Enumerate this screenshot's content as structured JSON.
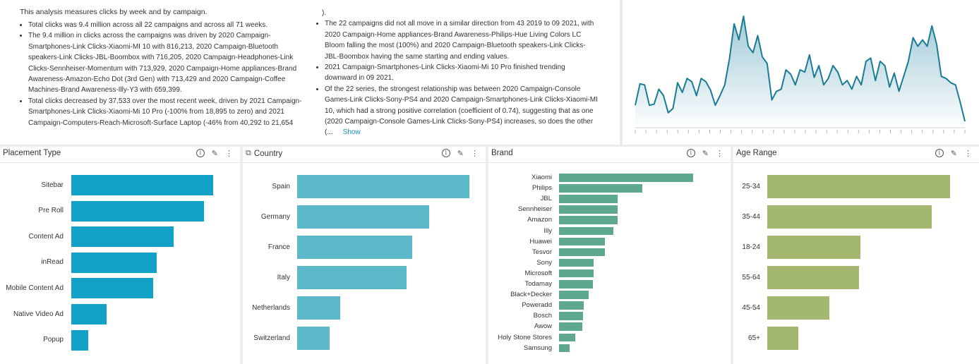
{
  "insights": {
    "intro": "This analysis measures clicks by week and by campaign.",
    "col1": [
      "Total clicks was 9.4 million across all 22 campaigns and across all 71 weeks.",
      "The 9.4 million in clicks across the campaigns was driven by 2020 Campaign-Smartphones-Link Clicks-Xiaomi-MI 10 with 816,213, 2020 Campaign-Bluetooth speakers-Link Clicks-JBL-Boombox with 716,205, 2020 Campaign-Headphones-Link Clicks-Sennheiser-Momentum with 713,929, 2020 Campaign-Home appliances-Brand Awareness-Amazon-Echo Dot (3rd Gen) with 713,429 and 2020 Campaign-Coffee Machines-Brand Awareness-Illy-Y3 with 659,399.",
      "Total clicks decreased by 37,533 over the most recent week, driven by 2021 Campaign-Smartphones-Link Clicks-Xiaomi-Mi 10 Pro (-100% from 18,895 to zero) and 2021 Campaign-Computers-Reach-Microsoft-Surface Laptop (-46% from 40,292 to 21,654"
    ],
    "col2_cont": ").",
    "col2": [
      "The 22 campaigns did not all move in a similar direction from 43 2019 to 09 2021, with 2020 Campaign-Home appliances-Brand Awareness-Philips-Hue Living Colors LC Bloom falling the most (100%) and 2020 Campaign-Bluetooth speakers-Link Clicks-JBL-Boombox having the same starting and ending values.",
      "2021 Campaign-Smartphones-Link Clicks-Xiaomi-Mi 10 Pro finished trending downward in 09 2021.",
      "Of the 22 series, the strongest relationship was between 2020 Campaign-Console Games-Link Clicks-Sony-PS4 and 2020 Campaign-Smartphones-Link Clicks-Xiaomi-MI 10, which had a strong positive correlation (coefficient of 0.74), suggesting that as one (2020 Campaign-Console Games-Link Clicks-Sony-PS4) increases, so does the other (..."
    ],
    "show_label": "Show"
  },
  "colors": {
    "placement": "#12a2c8",
    "country": "#5ab8c9",
    "brand": "#5ea88f",
    "age": "#a3b86e",
    "spark_line": "#1c7b94"
  },
  "panels": {
    "placement": {
      "title": "Placement Type"
    },
    "country": {
      "title": "Country"
    },
    "brand": {
      "title": "Brand"
    },
    "age": {
      "title": "Age Range"
    }
  },
  "chart_data": [
    {
      "type": "line",
      "values": [
        0.15,
        0.35,
        0.34,
        0.15,
        0.16,
        0.3,
        0.24,
        0.08,
        0.12,
        0.36,
        0.27,
        0.4,
        0.37,
        0.24,
        0.4,
        0.37,
        0.29,
        0.15,
        0.24,
        0.34,
        0.58,
        0.91,
        0.76,
        0.98,
        0.7,
        0.64,
        0.8,
        0.6,
        0.54,
        0.2,
        0.28,
        0.3,
        0.48,
        0.44,
        0.34,
        0.48,
        0.46,
        0.62,
        0.41,
        0.52,
        0.34,
        0.4,
        0.52,
        0.46,
        0.34,
        0.38,
        0.3,
        0.42,
        0.34,
        0.56,
        0.59,
        0.38,
        0.56,
        0.52,
        0.32,
        0.45,
        0.28,
        0.42,
        0.56,
        0.78,
        0.7,
        0.76,
        0.7,
        0.89,
        0.72,
        0.42,
        0.4,
        0.36,
        0.34,
        0.18,
        0.0
      ],
      "ylim": [
        0,
        1
      ]
    },
    {
      "type": "bar",
      "orientation": "horizontal",
      "categories": [
        "Sitebar",
        "Pre Roll",
        "Content Ad",
        "inRead",
        "Mobile Content Ad",
        "Native Video Ad",
        "Popup"
      ],
      "values": [
        100,
        93.5,
        72,
        60,
        57.5,
        25,
        12
      ]
    },
    {
      "type": "bar",
      "orientation": "horizontal",
      "categories": [
        "Spain",
        "Germany",
        "France",
        "Italy",
        "Netherlands",
        "Switzerland"
      ],
      "values": [
        100,
        76.5,
        67,
        63.5,
        25,
        19
      ]
    },
    {
      "type": "bar",
      "orientation": "horizontal",
      "categories": [
        "Xiaomi",
        "Philips",
        "JBL",
        "Sennheiser",
        "Amazon",
        "Illy",
        "Huawei",
        "Tesvor",
        "Sony",
        "Microsoft",
        "Todamay",
        "Black+Decker",
        "Poweradd",
        "Bosch",
        "Awow",
        "Holy Stone Stores",
        "Samsung"
      ],
      "values": [
        100,
        62,
        43.5,
        43.5,
        43.5,
        40.5,
        34,
        34,
        26,
        26,
        25,
        22,
        18.5,
        18,
        17.5,
        12,
        8
      ]
    },
    {
      "type": "bar",
      "orientation": "horizontal",
      "categories": [
        "25-34",
        "35-44",
        "18-24",
        "55-64",
        "45-54",
        "65+"
      ],
      "values": [
        100,
        90,
        51,
        50,
        34,
        17
      ]
    }
  ]
}
